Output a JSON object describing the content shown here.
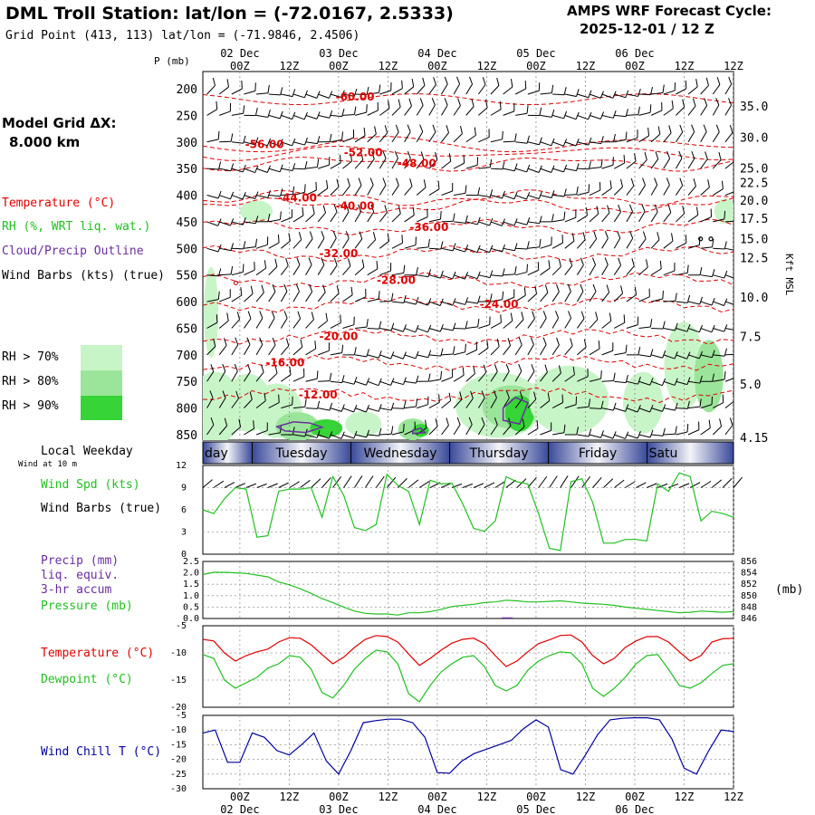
{
  "header": {
    "title": "DML Troll Station:  lat/lon = (-72.0167, 2.5333)",
    "gridpoint": "Grid Point (413, 113) lat/lon = (-71.9846, 2.4506)",
    "cycle_label": "AMPS WRF Forecast Cycle:",
    "cycle_value": "2025-12-01 / 12  Z"
  },
  "left_panel": {
    "grid_title": "Model Grid ΔX:",
    "grid_value": "8.000 km",
    "legend_temperature": "Temperature (°C)",
    "legend_rh": "RH (%, WRT liq. wat.)",
    "legend_cloud": "Cloud/Precip Outline",
    "legend_wind": "Wind Barbs (kts) (true)",
    "rh_70": "RH > 70%",
    "rh_80": "RH > 80%",
    "rh_90": "RH > 90%",
    "local_weekday": "Local Weekday",
    "wind_at": "Wind at 10 m",
    "wind_spd": "Wind Spd (kts)",
    "wind_barbs": "Wind Barbs (true)",
    "precip1": "Precip (mm)",
    "precip2": "liq. equiv.",
    "precip3": "3-hr accum",
    "pressure": "Pressure (mb)",
    "temperature": "Temperature (°C)",
    "dewpoint": "Dewpoint (°C)",
    "windchill": "Wind Chill T (°C)",
    "p_axis_label": "P (mb)",
    "kft_label": "Kft MSL",
    "mb_label": "(mb)"
  },
  "colors": {
    "temperature": "#e00000",
    "rh": "#20c020",
    "cloud": "#6a2da0",
    "wind": "#000000",
    "windchill": "#0000a0",
    "rh70": "#c8f5c8",
    "rh80": "#9be59b",
    "rh90": "#36d436"
  },
  "chart_data": {
    "type": "line",
    "time_axis": {
      "x_hours": [
        0,
        12,
        24,
        36,
        48,
        60,
        72,
        84,
        96,
        108,
        120
      ],
      "tick_labels": [
        "00Z",
        "12Z",
        "00Z",
        "12Z",
        "00Z",
        "12Z",
        "00Z",
        "12Z",
        "00Z",
        "12Z",
        "12Z"
      ],
      "date_labels": [
        "02 Dec",
        "03 Dec",
        "04 Dec",
        "05 Dec",
        "06 Dec"
      ],
      "date_hours": [
        0,
        24,
        48,
        72,
        96
      ],
      "start_offset_hours": -9
    },
    "weekdays": [
      "day",
      "Tuesday",
      "Wednesday",
      "Thursday",
      "Friday",
      "Satu"
    ],
    "sounding": {
      "pressure_levels": [
        "200",
        "250",
        "300",
        "350",
        "400",
        "450",
        "500",
        "550",
        "600",
        "650",
        "700",
        "750",
        "800",
        "850"
      ],
      "kft_labels": [
        "35.0",
        "30.0",
        "25.0",
        "22.5",
        "20.0",
        "17.5",
        "15.0",
        "12.5",
        "10.0",
        "7.5",
        "5.0",
        "4.15"
      ],
      "kft_pressure": [
        232,
        291,
        349,
        376,
        409,
        443,
        482,
        517,
        591,
        665,
        755,
        855
      ],
      "temperature_contours": [
        {
          "label": "-60.00",
          "p": 215,
          "hour": 28
        },
        {
          "label": "-56.00",
          "p": 305,
          "hour": 6
        },
        {
          "label": "-52.00",
          "p": 320,
          "hour": 30
        },
        {
          "label": "-48.00",
          "p": 340,
          "hour": 43
        },
        {
          "label": "-44.00",
          "p": 405,
          "hour": 14
        },
        {
          "label": "-40.00",
          "p": 420,
          "hour": 28
        },
        {
          "label": "-36.00",
          "p": 460,
          "hour": 46
        },
        {
          "label": "-32.00",
          "p": 510,
          "hour": 24
        },
        {
          "label": "-28.00",
          "p": 560,
          "hour": 38
        },
        {
          "label": "-24.00",
          "p": 605,
          "hour": 63
        },
        {
          "label": "-20.00",
          "p": 665,
          "hour": 24
        },
        {
          "label": "-16.00",
          "p": 715,
          "hour": 11
        },
        {
          "label": "-12.00",
          "p": 775,
          "hour": 19
        }
      ]
    },
    "wind_speed": {
      "ylim": [
        0,
        12
      ],
      "yticks": [
        "0",
        "3",
        "6",
        "9",
        "12"
      ],
      "values": [
        6,
        5.5,
        7.5,
        9,
        8.8,
        2.3,
        2.5,
        8.5,
        8.8,
        8.8,
        9,
        5,
        10.5,
        8,
        3.6,
        3.2,
        4,
        10.8,
        9.3,
        8.5,
        4,
        10,
        9.5,
        9.6,
        6.8,
        3.5,
        3.1,
        4.5,
        10.5,
        9.8,
        9.5,
        5.5,
        0.8,
        0.5,
        9.8,
        10.2,
        7,
        1.5,
        1.5,
        2,
        2,
        1.8,
        9.5,
        8.5,
        11,
        10.5,
        4.5,
        5.8,
        5.5,
        5
      ]
    },
    "pressure": {
      "ylim": [
        846,
        856
      ],
      "yticks": [
        "846",
        "848",
        "850",
        "852",
        "854",
        "856"
      ],
      "values": [
        853.7,
        854.1,
        854.1,
        854,
        853.9,
        853.6,
        853.3,
        852.4,
        851.9,
        851.2,
        850.4,
        849.5,
        848.8,
        848,
        847.3,
        846.9,
        846.8,
        846.8,
        846.6,
        847,
        847,
        847.2,
        847.6,
        848.1,
        848.3,
        848.5,
        848.8,
        848.9,
        849.2,
        849.1,
        848.9,
        848.9,
        849,
        849.1,
        848.9,
        848.7,
        848.6,
        848.5,
        848.3,
        848,
        847.8,
        847.6,
        847.4,
        847.2,
        847,
        847.1,
        847.3,
        847.2,
        847.1,
        847.2
      ]
    },
    "precip": {
      "ylim": [
        0,
        2.5
      ],
      "yticks": [
        "0.0",
        "0.5",
        "1.0",
        "1.5",
        "2.0",
        "2.5"
      ],
      "values_hour": [
        65
      ],
      "values": [
        0.05
      ]
    },
    "temperature": {
      "ylim": [
        -20,
        -5
      ],
      "yticks": [
        "-5",
        "-10",
        "-15",
        "-20"
      ],
      "values": [
        -7.5,
        -7.8,
        -10,
        -11.5,
        -10.5,
        -9.8,
        -9.3,
        -8,
        -7.2,
        -7.3,
        -8.5,
        -10.3,
        -12,
        -10.8,
        -9,
        -7.5,
        -6.8,
        -7,
        -8,
        -10.2,
        -12.3,
        -11,
        -9.5,
        -8.2,
        -7.5,
        -7.3,
        -8.3,
        -10.5,
        -12.5,
        -11.5,
        -9.8,
        -8.3,
        -7.6,
        -6.8,
        -6.7,
        -8,
        -10.5,
        -12,
        -11,
        -9,
        -7.8,
        -7,
        -7,
        -8,
        -9.8,
        -11.5,
        -10.5,
        -8,
        -7.4,
        -7.3
      ]
    },
    "dewpoint": {
      "ylim": [
        -20,
        -5
      ],
      "yticks": [
        "-5",
        "-10",
        "-15",
        "-20"
      ],
      "values": [
        -10.3,
        -11,
        -15,
        -16.5,
        -15.5,
        -14.5,
        -12.8,
        -12,
        -10.5,
        -10.8,
        -13,
        -17.3,
        -18.3,
        -16,
        -13,
        -11,
        -9.5,
        -9.8,
        -12,
        -17.5,
        -19,
        -16,
        -13.5,
        -12,
        -10.8,
        -10.5,
        -12.5,
        -16,
        -17,
        -16,
        -13.2,
        -11.5,
        -10.5,
        -9.8,
        -10,
        -12,
        -16.5,
        -18,
        -16.5,
        -14.5,
        -12,
        -10.5,
        -10.3,
        -13,
        -16,
        -16.5,
        -15.5,
        -13.8,
        -12.3,
        -12
      ]
    },
    "windchill": {
      "ylim": [
        -30,
        -5
      ],
      "yticks": [
        "-5",
        "-10",
        "-15",
        "-20",
        "-25",
        "-30"
      ],
      "values": [
        -11,
        -10,
        -21,
        -21,
        -11,
        -12.5,
        -17,
        -18.5,
        -15,
        -11,
        -20.5,
        -25,
        -17,
        -7.5,
        -6.8,
        -6.3,
        -6.3,
        -7.5,
        -12.5,
        -24.5,
        -24.7,
        -20.5,
        -18,
        -16.5,
        -15,
        -13.5,
        -9.5,
        -6.5,
        -9,
        -23.5,
        -25,
        -18.5,
        -11.5,
        -6.5,
        -6,
        -5.8,
        -5.8,
        -6.5,
        -13,
        -23,
        -25,
        -17,
        -10,
        -10.5
      ]
    }
  }
}
